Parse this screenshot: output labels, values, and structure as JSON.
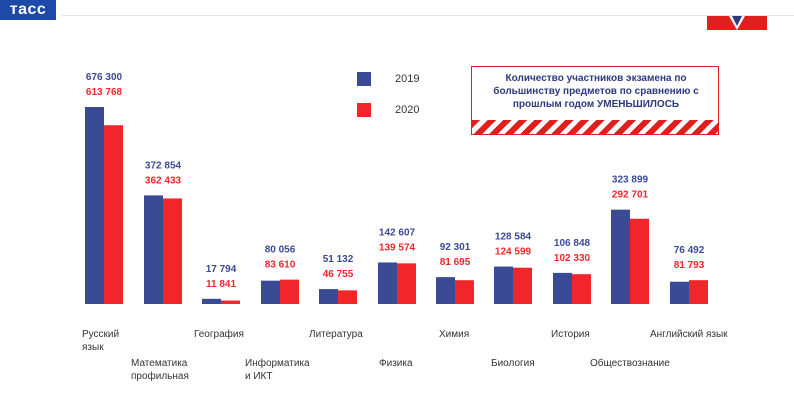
{
  "header": {
    "logo_text": "тасс"
  },
  "chart_data": {
    "type": "bar",
    "title": "",
    "xlabel": "",
    "ylabel": "",
    "categories": [
      [
        "Русский",
        "язык"
      ],
      [
        "Математика",
        "профильная"
      ],
      [
        "География"
      ],
      [
        "Информатика",
        "и ИКТ"
      ],
      [
        "Литература"
      ],
      [
        "Физика"
      ],
      [
        "Химия"
      ],
      [
        "Биология"
      ],
      [
        "История"
      ],
      [
        "Обществознание"
      ],
      [
        "Английский язык"
      ]
    ],
    "series": [
      {
        "name": "2019",
        "color": "#3a4a95",
        "values": [
          676300,
          372854,
          17794,
          80056,
          51132,
          142607,
          92301,
          128584,
          106848,
          323899,
          76492
        ],
        "labels": [
          "676 300",
          "372 854",
          "17 794",
          "80 056",
          "51 132",
          "142 607",
          "92 301",
          "128 584",
          "106 848",
          "323 899",
          "76 492"
        ]
      },
      {
        "name": "2020",
        "color": "#f0262a",
        "values": [
          613768,
          362433,
          11841,
          83610,
          46755,
          139574,
          81695,
          124599,
          102330,
          292701,
          81793
        ],
        "labels": [
          "613 768",
          "362 433",
          "11 841",
          "83 610",
          "46 755",
          "139 574",
          "81 695",
          "124 599",
          "102 330",
          "292 701",
          "81 793"
        ]
      }
    ],
    "ylim": [
      0,
      676300
    ],
    "grid": false,
    "legend": "top-center"
  },
  "legend": {
    "items": [
      {
        "label": "2019",
        "color": "#3a4a95"
      },
      {
        "label": "2020",
        "color": "#f0262a"
      }
    ]
  },
  "note": {
    "text": "Количество участников экзамена по большинству предметов по сравнению с прошлым годом УМЕНЬШИЛОСЬ"
  }
}
